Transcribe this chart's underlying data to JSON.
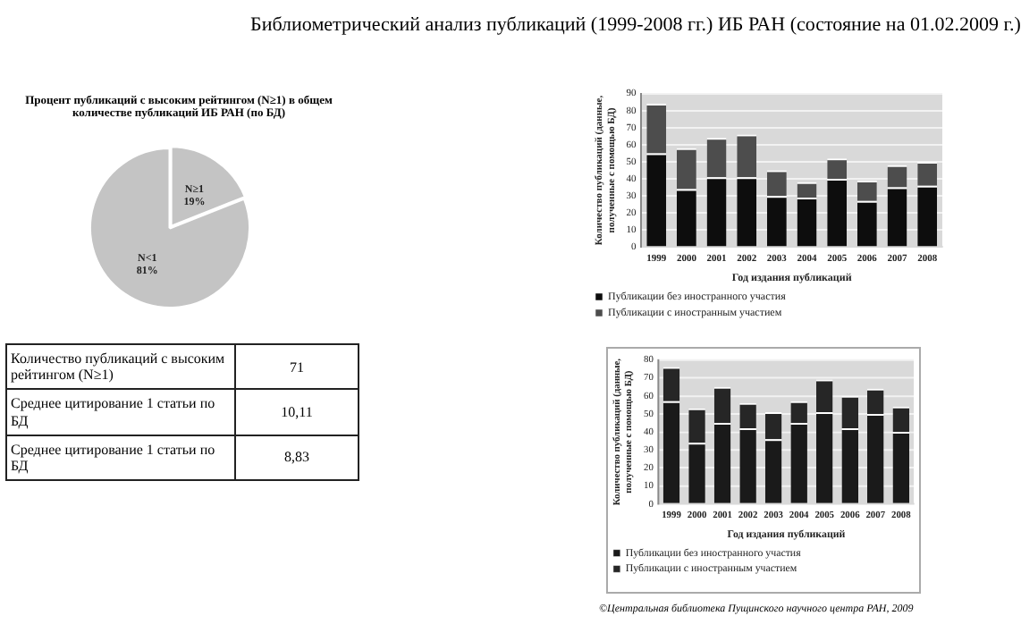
{
  "chart_data": [
    {
      "type": "other",
      "title": "Библиометрический анализ публикаций (1999-2008 гг.) ИБ РАН (состояние на 01.02.2009 г.)",
      "annotations": [
        "©Центральная библиотека Пущинского научного центра РАН, 2009"
      ]
    },
    {
      "type": "pie",
      "title": "Процент публикаций с высоким рейтингом (N≥1) в общем количестве публикаций ИБ РАН (по БД)",
      "categories": [
        "N≥1",
        "N<1"
      ],
      "values": [
        19,
        81
      ],
      "colors": [
        "#c4c4c4",
        "#c4c4c4"
      ],
      "value_labels": [
        "19%",
        "81%"
      ],
      "legend": false
    },
    {
      "type": "other",
      "annotations": [
        "Количество публикаций с высоким рейтингом (N≥1)",
        "71",
        "Среднее цитирование 1 статьи по БД",
        "10,11",
        "Среднее цитирование 1 статьи по БД",
        "8,83"
      ]
    },
    {
      "type": "bar",
      "stacked": true,
      "xlabel": "Год издания публикаций",
      "ylabel": "Количество публикаций (данные, полученные с помощью БД)",
      "categories": [
        "1999",
        "2000",
        "2001",
        "2002",
        "2003",
        "2004",
        "2005",
        "2006",
        "2007",
        "2008"
      ],
      "ylim": [
        0,
        90
      ],
      "yticks": [
        0,
        10,
        20,
        30,
        40,
        50,
        60,
        70,
        80,
        90
      ],
      "grid": "y",
      "legend": "bottom",
      "series": [
        {
          "name": "Публикации без иностранного участия",
          "color": "#0d0d0d",
          "values": [
            55,
            34,
            41,
            41,
            30,
            29,
            40,
            27,
            35,
            36
          ]
        },
        {
          "name": "Публикации с иностранным участием",
          "color": "#4d4d4d",
          "values": [
            29,
            24,
            23,
            25,
            15,
            9,
            12,
            12,
            13,
            14
          ]
        }
      ]
    },
    {
      "type": "bar",
      "stacked": true,
      "xlabel": "Год издания публикаций",
      "ylabel": "Количество публикаций (данные, полученные с помощью БД)",
      "categories": [
        "1999",
        "2000",
        "2001",
        "2002",
        "2003",
        "2004",
        "2005",
        "2006",
        "2007",
        "2008"
      ],
      "ylim": [
        0,
        80
      ],
      "yticks": [
        0,
        10,
        20,
        30,
        40,
        50,
        60,
        70,
        80
      ],
      "grid": "y",
      "legend": "bottom",
      "series": [
        {
          "name": "Публикации без иностранного участия",
          "color": "#1a1a1a",
          "values": [
            57,
            34,
            45,
            42,
            36,
            45,
            51,
            42,
            50,
            40
          ]
        },
        {
          "name": "Публикации с иностранным участием",
          "color": "#262626",
          "values": [
            19,
            19,
            20,
            14,
            15,
            12,
            18,
            18,
            14,
            14
          ]
        }
      ]
    }
  ]
}
